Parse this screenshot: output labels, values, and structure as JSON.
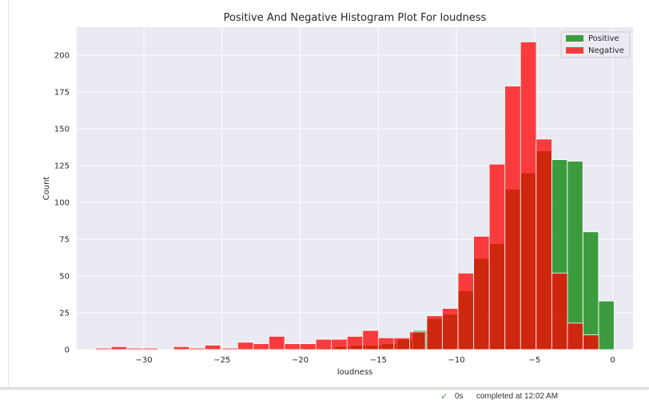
{
  "chart_data": {
    "type": "bar",
    "title": "Positive And Negative Histogram Plot For loudness",
    "xlabel": "loudness",
    "ylabel": "Count",
    "xlim": [
      -34.3,
      1.3
    ],
    "ylim": [
      0,
      219
    ],
    "xticks": [
      -30,
      -25,
      -20,
      -15,
      -10,
      -5,
      0
    ],
    "xtick_labels": [
      "−30",
      "−25",
      "−20",
      "−15",
      "−10",
      "−5",
      "0"
    ],
    "yticks": [
      0,
      25,
      50,
      75,
      100,
      125,
      150,
      175,
      200
    ],
    "grid": true,
    "legend_position": "top-right",
    "series": [
      {
        "name": "Positive",
        "color": "#008000",
        "opacity": 0.75,
        "bin_starts": [
          -19.8,
          -18.8,
          -17.8,
          -16.8,
          -15.8,
          -14.8,
          -13.8,
          -12.8,
          -11.9,
          -10.9,
          -9.9,
          -8.9,
          -7.9,
          -6.9,
          -5.9,
          -4.9,
          -3.9,
          -2.9,
          -1.9,
          -0.9
        ],
        "bin_width": 0.99,
        "values": [
          1,
          1,
          2,
          3,
          3,
          4,
          7,
          13,
          21,
          24,
          40,
          62,
          72,
          109,
          120,
          135,
          129,
          128,
          80,
          33
        ]
      },
      {
        "name": "Negative",
        "color": "#ff0000",
        "opacity": 0.75,
        "bin_starts": [
          -33.1,
          -32.1,
          -31.1,
          -30.1,
          -29.1,
          -28.1,
          -27.1,
          -26.1,
          -25.0,
          -24.0,
          -23.0,
          -22.0,
          -21.0,
          -20.0,
          -19.0,
          -18.0,
          -17.0,
          -16.0,
          -15.0,
          -14.0,
          -13.0,
          -11.9,
          -10.9,
          -9.9,
          -8.9,
          -7.9,
          -6.9,
          -5.9,
          -4.9,
          -3.9,
          -2.9,
          -1.9
        ],
        "bin_width": 1.01,
        "values": [
          1,
          2,
          1,
          1,
          0,
          2,
          1,
          3,
          1,
          5,
          4,
          9,
          4,
          4,
          7,
          7,
          9,
          13,
          8,
          8,
          12,
          23,
          28,
          52,
          77,
          126,
          179,
          209,
          143,
          52,
          18,
          10
        ]
      }
    ]
  },
  "statusbar": {
    "check_icon": "✓",
    "time": "0s",
    "text": "completed at 12:02 AM"
  }
}
